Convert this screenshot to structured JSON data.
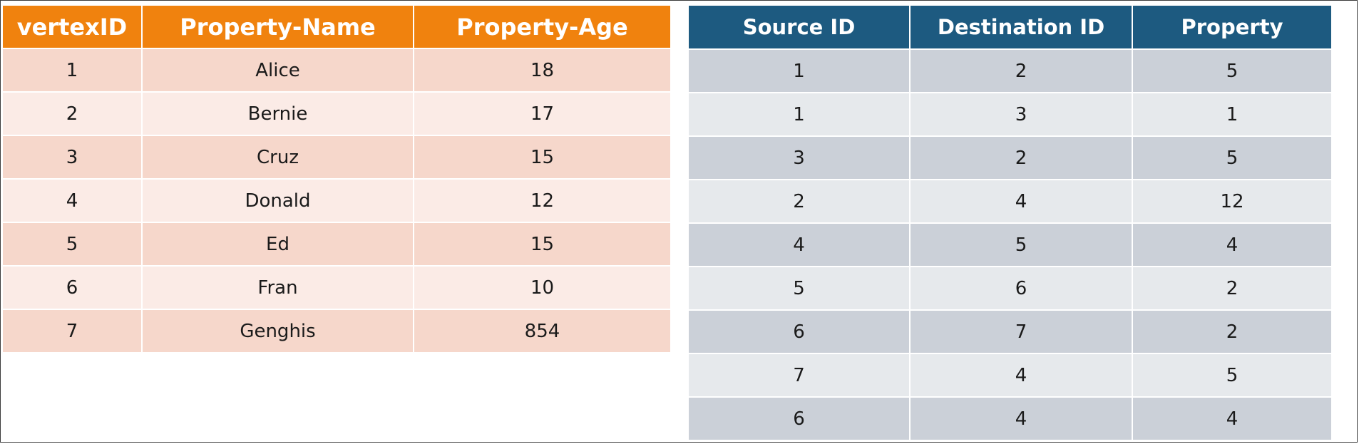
{
  "vertex_table": {
    "headers": [
      "vertexID",
      "Property-Name",
      "Property-Age"
    ],
    "rows": [
      [
        "1",
        "Alice",
        "18"
      ],
      [
        "2",
        "Bernie",
        "17"
      ],
      [
        "3",
        "Cruz",
        "15"
      ],
      [
        "4",
        "Donald",
        "12"
      ],
      [
        "5",
        "Ed",
        "15"
      ],
      [
        "6",
        "Fran",
        "10"
      ],
      [
        "7",
        "Genghis",
        "854"
      ]
    ]
  },
  "edge_table": {
    "headers": [
      "Source ID",
      "Destination ID",
      "Property"
    ],
    "rows": [
      [
        "1",
        "2",
        "5"
      ],
      [
        "1",
        "3",
        "1"
      ],
      [
        "3",
        "2",
        "5"
      ],
      [
        "2",
        "4",
        "12"
      ],
      [
        "4",
        "5",
        "4"
      ],
      [
        "5",
        "6",
        "2"
      ],
      [
        "6",
        "7",
        "2"
      ],
      [
        "7",
        "4",
        "5"
      ],
      [
        "6",
        "4",
        "4"
      ]
    ]
  },
  "colors": {
    "vertex_header": "#f0820e",
    "vertex_row_dark": "#f6d7cb",
    "vertex_row_light": "#fbebe6",
    "edge_header": "#1d5a80",
    "edge_row_dark": "#cbd0d8",
    "edge_row_light": "#e6e9ec"
  }
}
